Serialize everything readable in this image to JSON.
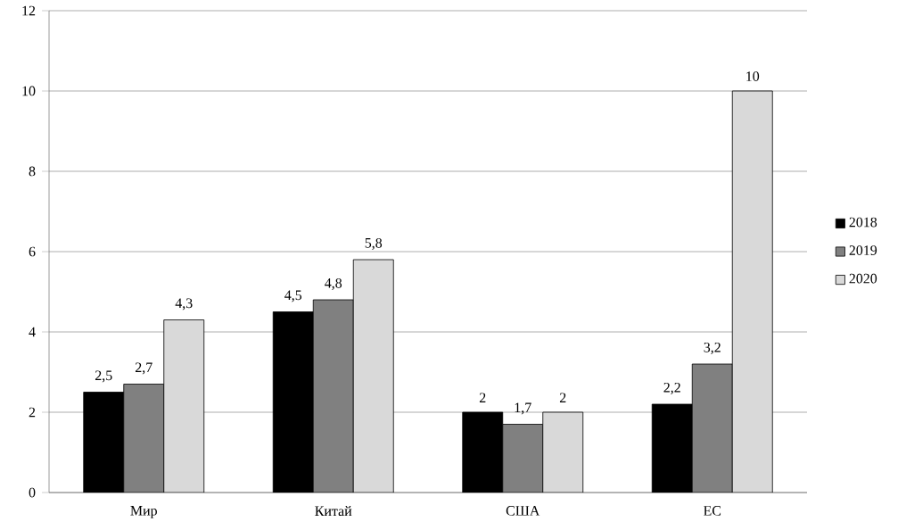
{
  "chart_data": {
    "type": "bar",
    "categories": [
      "Мир",
      "Китай",
      "США",
      "ЕС"
    ],
    "series": [
      {
        "name": "2018",
        "color": "#000000",
        "values": [
          2.5,
          4.5,
          2,
          2.2
        ],
        "value_labels": [
          "2,5",
          "4,5",
          "2",
          "2,2"
        ]
      },
      {
        "name": "2019",
        "color": "#808080",
        "values": [
          2.7,
          4.8,
          1.7,
          3.2
        ],
        "value_labels": [
          "2,7",
          "4,8",
          "1,7",
          "3,2"
        ]
      },
      {
        "name": "2020",
        "color": "#d9d9d9",
        "values": [
          4.3,
          5.8,
          2,
          10
        ],
        "value_labels": [
          "4,3",
          "5,8",
          "2",
          "10"
        ]
      }
    ],
    "ylim": [
      0,
      12
    ],
    "yticks": [
      0,
      2,
      4,
      6,
      8,
      10,
      12
    ],
    "grid": "y",
    "legend": "right"
  }
}
